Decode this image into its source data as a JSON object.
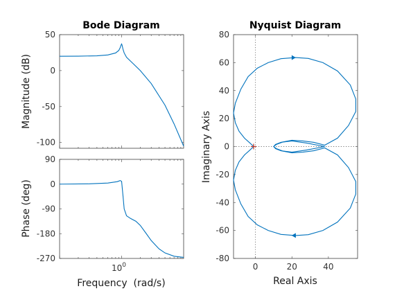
{
  "colors": {
    "curve": "#0072bd",
    "critical_point": "#c0392b"
  },
  "chart_data": [
    {
      "type": "line",
      "name": "bode",
      "title": "Bode Diagram",
      "xlabel": "Frequency  (rad/s)",
      "x_scale": "log",
      "xlim": [
        0.1,
        10
      ],
      "x_ticks": [
        {
          "value": 1,
          "base": "10",
          "exp": "0"
        }
      ],
      "magnitude": {
        "ylabel": "Magnitude (dB)",
        "ylim": [
          -108,
          50
        ],
        "y_ticks": [
          50,
          0,
          -50,
          -100
        ],
        "freq": [
          0.1,
          0.2,
          0.4,
          0.6,
          0.8,
          0.9,
          0.95,
          0.98,
          1.0,
          1.02,
          1.05,
          1.1,
          1.2,
          1.5,
          2,
          3,
          5,
          7,
          10
        ],
        "db": [
          20,
          20.1,
          20.6,
          21.8,
          24.5,
          28,
          32,
          35.5,
          37,
          35,
          30,
          24.5,
          18.5,
          10.5,
          0,
          -18,
          -48,
          -74,
          -105
        ]
      },
      "phase": {
        "ylabel": "Phase (deg)",
        "ylim": [
          -270,
          90
        ],
        "y_ticks": [
          90,
          0,
          -90,
          -180,
          -270
        ],
        "freq": [
          0.1,
          0.3,
          0.6,
          0.85,
          0.95,
          1.0,
          1.05,
          1.1,
          1.2,
          1.4,
          1.7,
          2,
          2.5,
          3,
          4,
          5,
          7,
          10
        ],
        "deg": [
          0,
          1,
          4,
          9,
          13,
          10,
          -40,
          -90,
          -115,
          -125,
          -135,
          -150,
          -180,
          -205,
          -235,
          -250,
          -262,
          -266
        ]
      }
    },
    {
      "type": "line",
      "name": "nyquist",
      "title": "Nyquist Diagram",
      "xlabel": "Real Axis",
      "ylabel": "Imaginary Axis",
      "xlim": [
        -12,
        56
      ],
      "ylim": [
        -80,
        80
      ],
      "x_ticks": [
        0,
        20,
        40
      ],
      "y_ticks": [
        80,
        60,
        40,
        20,
        0,
        -20,
        -40,
        -60,
        -80
      ],
      "critical_point": [
        -1,
        0
      ],
      "upper_branch": {
        "re": [
          38,
          28,
          20,
          15,
          11.5,
          10,
          11,
          14,
          20,
          26,
          32,
          38,
          45,
          51,
          55,
          55,
          52,
          45,
          37,
          29,
          22,
          14,
          7,
          1,
          -4,
          -8,
          -11,
          -12,
          -11,
          -9,
          -6,
          -3,
          -1
        ],
        "im": [
          0,
          -2.5,
          -4,
          -3.2,
          -1.5,
          0,
          1.5,
          3,
          4.5,
          4,
          3,
          1,
          6,
          15,
          25,
          34,
          44,
          54,
          60,
          63,
          63.6,
          62.8,
          60,
          56,
          50,
          41,
          31,
          24,
          17,
          11,
          6,
          2.5,
          0
        ]
      },
      "arrows": [
        {
          "re": 21,
          "im": 63.6,
          "direction": "right"
        },
        {
          "re": 21,
          "im": -63.6,
          "direction": "left"
        }
      ]
    }
  ]
}
